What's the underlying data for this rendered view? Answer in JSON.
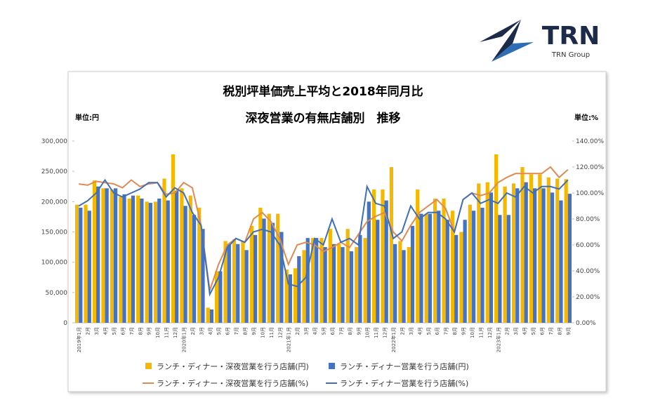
{
  "logo": {
    "name": "TRN",
    "subtitle": "TRN Group"
  },
  "chart_data": {
    "type": "bar-line",
    "title": "税別坪単価売上平均と2018年同月比",
    "subtitle": "深夜営業の有無店舗別　推移",
    "y_unit": "単位:円",
    "y2_unit": "単位:%",
    "categories": [
      "2019年1月",
      "2月",
      "3月",
      "4月",
      "5月",
      "6月",
      "7月",
      "8月",
      "9月",
      "10月",
      "11月",
      "12月",
      "2020年1月",
      "2月",
      "3月",
      "4月",
      "5月",
      "6月",
      "7月",
      "8月",
      "9月",
      "10月",
      "11月",
      "12月",
      "2021年1月",
      "2月",
      "3月",
      "4月",
      "5月",
      "6月",
      "7月",
      "8月",
      "9月",
      "10月",
      "11月",
      "12月",
      "2022年1月",
      "2月",
      "3月",
      "4月",
      "5月",
      "6月",
      "7月",
      "8月",
      "9月",
      "10月",
      "11月",
      "12月",
      "2023年1月",
      "2月",
      "3月",
      "4月",
      "5月",
      "6月",
      "7月",
      "8月",
      "9月"
    ],
    "series": [
      {
        "name": "ランチ・ディナー・深夜営業を行う店舗(円)",
        "kind": "bar",
        "color": "#f5b800",
        "values": [
          195000,
          195000,
          235000,
          222000,
          220000,
          208000,
          205000,
          210000,
          200000,
          200000,
          238000,
          278000,
          222000,
          210000,
          190000,
          25000,
          85000,
          135000,
          138000,
          135000,
          160000,
          190000,
          180000,
          180000,
          88000,
          90000,
          120000,
          140000,
          140000,
          155000,
          130000,
          155000,
          125000,
          140000,
          220000,
          220000,
          257000,
          135000,
          125000,
          220000,
          180000,
          205000,
          205000,
          185000,
          150000,
          195000,
          230000,
          232000,
          278000,
          225000,
          230000,
          257000,
          245000,
          245000,
          240000,
          238000,
          237000
        ]
      },
      {
        "name": "ランチ・ディナー営業を行う店舗(円)",
        "kind": "bar",
        "color": "#4472c4",
        "values": [
          190000,
          185000,
          225000,
          222000,
          222000,
          212000,
          210000,
          205000,
          198000,
          205000,
          202000,
          218000,
          193000,
          178000,
          155000,
          22000,
          85000,
          130000,
          130000,
          120000,
          145000,
          172000,
          165000,
          150000,
          80000,
          110000,
          140000,
          140000,
          125000,
          130000,
          125000,
          118000,
          145000,
          200000,
          170000,
          202000,
          130000,
          120000,
          160000,
          180000,
          180000,
          185000,
          170000,
          145000,
          170000,
          185000,
          190000,
          215000,
          178000,
          178000,
          222000,
          232000,
          222000,
          222000,
          215000,
          202000,
          213000
        ]
      },
      {
        "name": "ランチ・ディナー・深夜営業を行う店舗(%)",
        "kind": "line",
        "axis": "y2",
        "color": "#e08a52",
        "values": [
          107,
          106,
          109,
          108,
          107,
          104,
          110,
          105,
          107,
          108,
          99,
          100,
          108,
          104,
          75,
          25,
          45,
          60,
          65,
          62,
          80,
          85,
          78,
          65,
          45,
          60,
          62,
          60,
          55,
          58,
          62,
          58,
          68,
          78,
          82,
          85,
          70,
          63,
          75,
          85,
          90,
          95,
          88,
          70,
          95,
          100,
          98,
          100,
          108,
          112,
          115,
          115,
          115,
          115,
          120,
          112,
          118
        ]
      },
      {
        "name": "ランチ・ディナー営業を行う店舗(%)",
        "kind": "line",
        "axis": "y2",
        "color": "#3f6fb5",
        "values": [
          90,
          94,
          100,
          110,
          100,
          97,
          100,
          103,
          108,
          108,
          97,
          104,
          100,
          85,
          75,
          22,
          35,
          58,
          65,
          62,
          70,
          72,
          70,
          60,
          30,
          28,
          35,
          65,
          60,
          80,
          62,
          65,
          60,
          105,
          92,
          90,
          65,
          70,
          90,
          80,
          85,
          85,
          80,
          70,
          95,
          100,
          92,
          95,
          92,
          100,
          97,
          105,
          100,
          105,
          105,
          103,
          110
        ]
      }
    ],
    "ylim": [
      0,
      300000
    ],
    "yticks": [
      0,
      {
        "value": 50000,
        "label": "50,000"
      },
      {
        "value": 100000,
        "label": "100,000"
      },
      {
        "value": 150000,
        "label": "150,000"
      },
      {
        "value": 200000,
        "label": "200,000"
      },
      {
        "value": 250000,
        "label": "250,000"
      },
      {
        "value": 300000,
        "label": "300,000"
      }
    ],
    "y2lim": [
      0,
      140
    ],
    "y2ticks": [
      {
        "value": 0,
        "label": "0.00%"
      },
      {
        "value": 20,
        "label": "20.00%"
      },
      {
        "value": 40,
        "label": "40.00%"
      },
      {
        "value": 60,
        "label": "60.00%"
      },
      {
        "value": 80,
        "label": "80.00%"
      },
      {
        "value": 100,
        "label": "100.00%"
      },
      {
        "value": 120,
        "label": "120.00%"
      },
      {
        "value": 140,
        "label": "140.00%"
      }
    ]
  }
}
